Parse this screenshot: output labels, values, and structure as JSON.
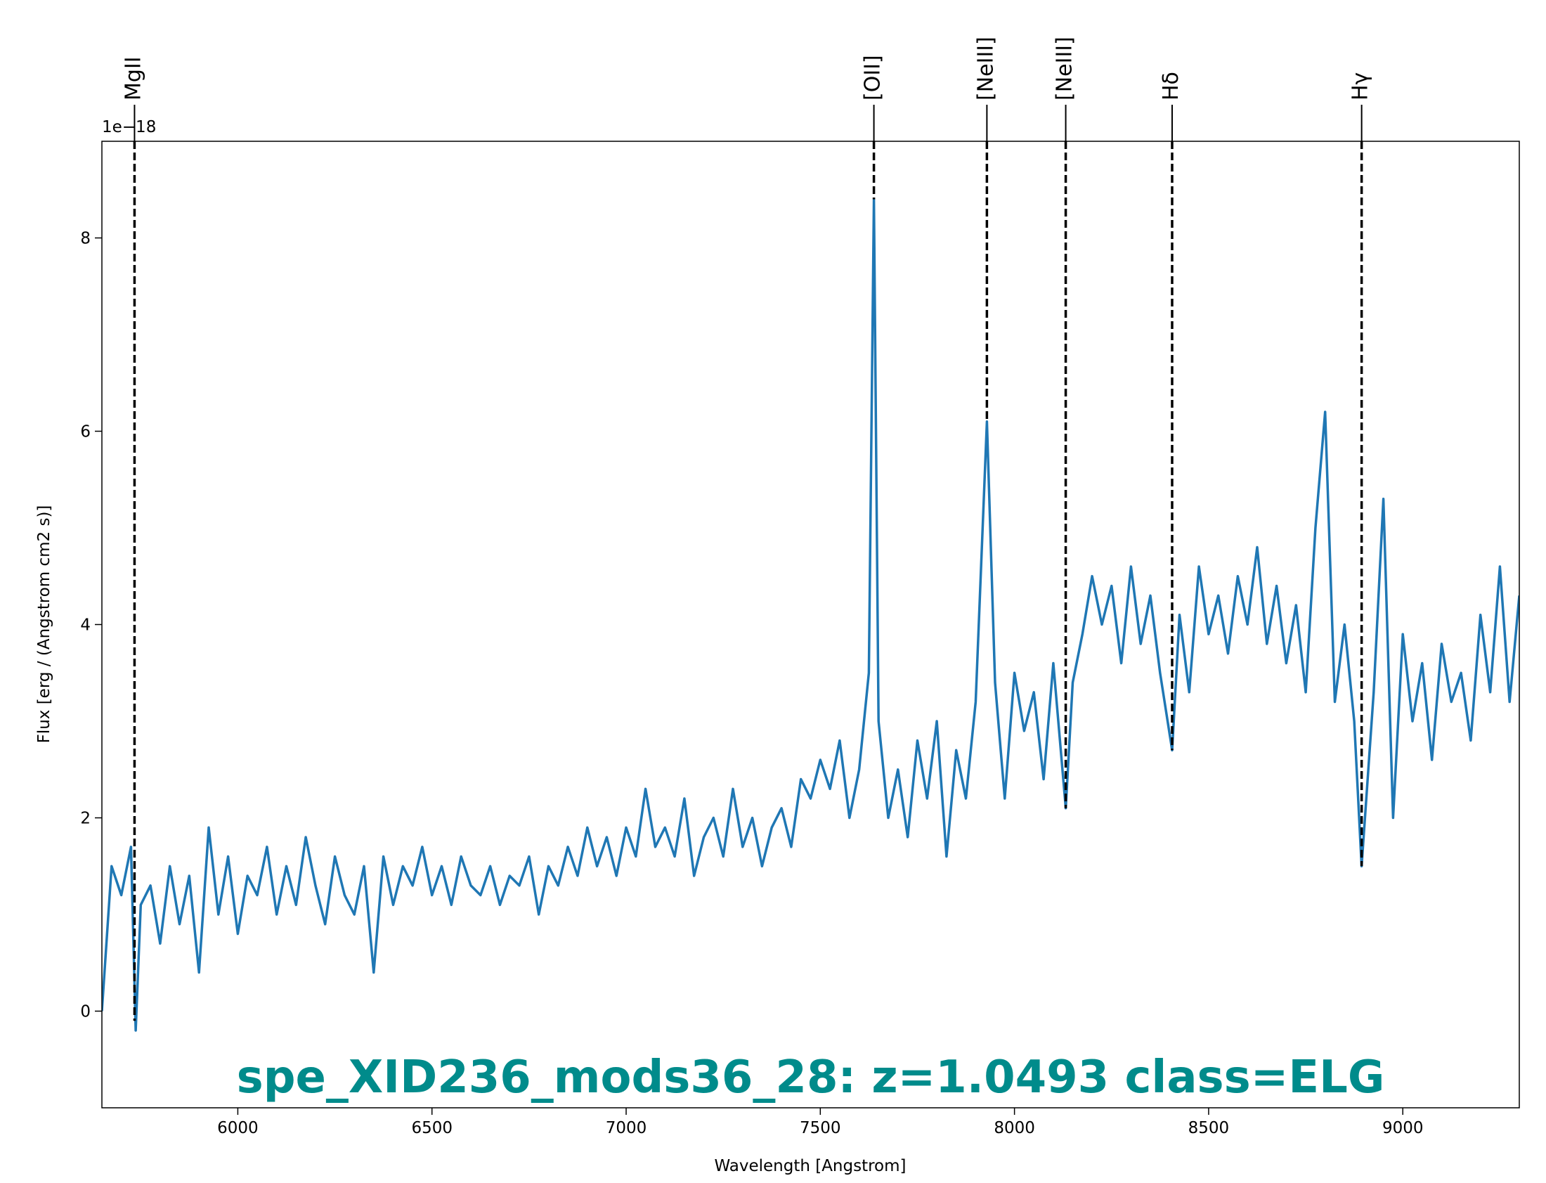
{
  "chart_data": {
    "type": "line",
    "title": "spe_XID236_mods36_28: z=1.0493 class=ELG",
    "xlabel": "Wavelength [Angstrom]",
    "ylabel": "Flux [erg / (Angstrom cm2 s)]",
    "y_offset_label": "1e−18",
    "color": "#1f77b4",
    "title_color": "#008b8b",
    "xlim": [
      5650,
      9300
    ],
    "ylim": [
      -1,
      9
    ],
    "xticks": [
      6000,
      6500,
      7000,
      7500,
      8000,
      8500,
      9000
    ],
    "yticks": [
      0,
      2,
      4,
      6,
      8
    ],
    "x": [
      5650,
      5675,
      5700,
      5725,
      5737,
      5750,
      5775,
      5800,
      5825,
      5850,
      5875,
      5900,
      5925,
      5950,
      5975,
      6000,
      6025,
      6050,
      6075,
      6100,
      6125,
      6150,
      6175,
      6200,
      6225,
      6250,
      6275,
      6300,
      6325,
      6350,
      6375,
      6400,
      6425,
      6450,
      6475,
      6500,
      6525,
      6550,
      6575,
      6600,
      6625,
      6650,
      6675,
      6700,
      6725,
      6750,
      6775,
      6800,
      6825,
      6850,
      6875,
      6900,
      6925,
      6950,
      6975,
      7000,
      7025,
      7050,
      7075,
      7100,
      7125,
      7150,
      7175,
      7200,
      7225,
      7250,
      7275,
      7300,
      7325,
      7350,
      7375,
      7400,
      7425,
      7450,
      7475,
      7500,
      7525,
      7550,
      7575,
      7600,
      7625,
      7638,
      7650,
      7675,
      7700,
      7725,
      7750,
      7775,
      7800,
      7825,
      7850,
      7875,
      7900,
      7929,
      7950,
      7975,
      8000,
      8025,
      8050,
      8075,
      8100,
      8132,
      8150,
      8175,
      8200,
      8225,
      8250,
      8275,
      8300,
      8325,
      8350,
      8375,
      8406,
      8425,
      8450,
      8475,
      8500,
      8525,
      8550,
      8575,
      8600,
      8625,
      8650,
      8675,
      8700,
      8725,
      8750,
      8775,
      8800,
      8825,
      8850,
      8875,
      8894,
      8925,
      8950,
      8975,
      9000,
      9025,
      9050,
      9075,
      9100,
      9125,
      9150,
      9175,
      9200,
      9225,
      9250,
      9275,
      9300
    ],
    "values": [
      0.0,
      1.5,
      1.2,
      1.7,
      -0.2,
      1.1,
      1.3,
      0.7,
      1.5,
      0.9,
      1.4,
      0.4,
      1.9,
      1.0,
      1.6,
      0.8,
      1.4,
      1.2,
      1.7,
      1.0,
      1.5,
      1.1,
      1.8,
      1.3,
      0.9,
      1.6,
      1.2,
      1.0,
      1.5,
      0.4,
      1.6,
      1.1,
      1.5,
      1.3,
      1.7,
      1.2,
      1.5,
      1.1,
      1.6,
      1.3,
      1.2,
      1.5,
      1.1,
      1.4,
      1.3,
      1.6,
      1.0,
      1.5,
      1.3,
      1.7,
      1.4,
      1.9,
      1.5,
      1.8,
      1.4,
      1.9,
      1.6,
      2.3,
      1.7,
      1.9,
      1.6,
      2.2,
      1.4,
      1.8,
      2.0,
      1.6,
      2.3,
      1.7,
      2.0,
      1.5,
      1.9,
      2.1,
      1.7,
      2.4,
      2.2,
      2.6,
      2.3,
      2.8,
      2.0,
      2.5,
      3.5,
      8.4,
      3.0,
      2.0,
      2.5,
      1.8,
      2.8,
      2.2,
      3.0,
      1.6,
      2.7,
      2.2,
      3.2,
      6.1,
      3.4,
      2.2,
      3.5,
      2.9,
      3.3,
      2.4,
      3.6,
      2.1,
      3.4,
      3.9,
      4.5,
      4.0,
      4.4,
      3.6,
      4.6,
      3.8,
      4.3,
      3.5,
      2.7,
      4.1,
      3.3,
      4.6,
      3.9,
      4.3,
      3.7,
      4.5,
      4.0,
      4.8,
      3.8,
      4.4,
      3.6,
      4.2,
      3.3,
      5.0,
      6.2,
      3.2,
      4.0,
      3.0,
      1.5,
      3.3,
      5.3,
      2.0,
      3.9,
      3.0,
      3.6,
      2.6,
      3.8,
      3.2,
      3.5,
      2.8,
      4.1,
      3.3,
      4.6,
      3.2,
      4.3
    ],
    "lines": [
      {
        "label": "MgII",
        "x": 5734,
        "y_end": -0.1
      },
      {
        "label": "[OII]",
        "x": 7638,
        "y_end": 8.4
      },
      {
        "label": "[NeIII]",
        "x": 7929,
        "y_end": 6.1
      },
      {
        "label": "[NeIII]",
        "x": 8132,
        "y_end": 2.1
      },
      {
        "label": "Hδ",
        "x": 8406,
        "y_end": 2.7
      },
      {
        "label": "Hγ",
        "x": 8894,
        "y_end": 1.5
      }
    ]
  }
}
